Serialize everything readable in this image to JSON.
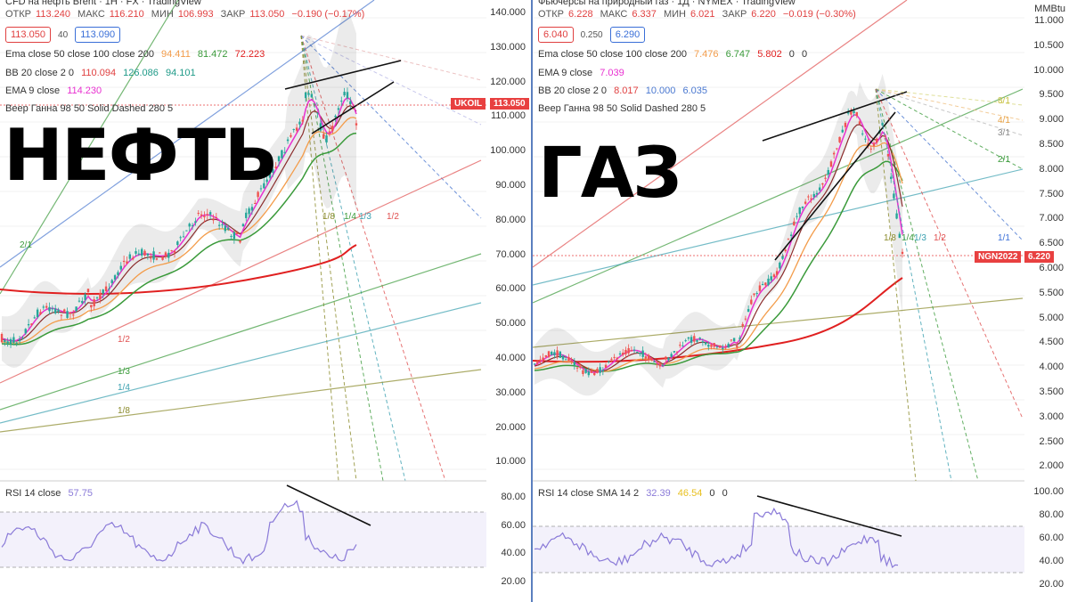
{
  "colors": {
    "up": "#26a69a",
    "down": "#ef5350",
    "ema50": "#f39c4a",
    "ema100": "#3a9a3a",
    "ema200": "#e02020",
    "ema9": "#e830d0",
    "bb_oil": "#1f9a88",
    "bb_gas": "#4a78d0",
    "rsi": "#8a7ad8",
    "trend": "#111111",
    "price_tag": "#e84040"
  },
  "left": {
    "title_partial": "CFD на нефть Brent · 1Н · FX · TradingView",
    "ohlc": {
      "open_k": "ОТКР",
      "open": "113.240",
      "high_k": "МАКС",
      "high": "116.210",
      "low_k": "МИН",
      "low": "106.993",
      "close_k": "ЗАКР",
      "close": "113.050",
      "change": "−0.190 (−0.17%)"
    },
    "sell_price": "113.050",
    "spread": "40",
    "buy_price": "113.090",
    "ema_line": {
      "label": "Ema close 50 close 100 close 200",
      "v1": "94.411",
      "v2": "81.472",
      "v3": "72.223"
    },
    "bb_line": {
      "label": "BB 20 close 2 0",
      "v1": "110.094",
      "v2": "126.086",
      "v3": "94.101"
    },
    "ema9_line": {
      "label": "EMA 9 close",
      "v1": "114.230"
    },
    "gann_line": {
      "label": "Веер Ганна 98 50 Solid Dashed 280 5"
    },
    "big_word": "НЕФТЬ",
    "axis": [
      "140.000",
      "130.000",
      "120.000",
      "110.000",
      "100.000",
      "90.000",
      "80.000",
      "70.000",
      "60.000",
      "50.000",
      "40.000",
      "30.000",
      "20.000",
      "10.000"
    ],
    "ticker_tag": "UKOIL",
    "price_tag": "113.050",
    "fan_labels": [
      "1/8",
      "1/4",
      "1/3",
      "1/2",
      "2/1",
      "1/2",
      "1/3",
      "1/4",
      "1/8"
    ],
    "rsi_label": "RSI 14 close",
    "rsi_value": "57.75",
    "rsi_axis": [
      "80.00",
      "60.00",
      "40.00",
      "20.00"
    ]
  },
  "right": {
    "title_partial": "Фьючерсы на природный газ · 1Д · NYMEX · TradingView",
    "ohlc": {
      "open_k": "ОТКР",
      "open": "6.228",
      "high_k": "МАКС",
      "high": "6.337",
      "low_k": "МИН",
      "low": "6.021",
      "close_k": "ЗАКР",
      "close": "6.220",
      "change": "−0.019 (−0.30%)"
    },
    "sell_price": "6.040",
    "spread": "0.250",
    "buy_price": "6.290",
    "ema_line": {
      "label": "Ema close 50 close 100 close 200",
      "v1": "7.476",
      "v2": "6.747",
      "v3": "5.802",
      "v4": "0",
      "v5": "0"
    },
    "ema9_line": {
      "label": "EMA 9 close",
      "v1": "7.039"
    },
    "bb_line": {
      "label": "BB 20 close 2 0",
      "v1": "8.017",
      "v2": "10.000",
      "v3": "6.035"
    },
    "gann_line": {
      "label": "Веер Ганна 98 50 Solid Dashed 280 5"
    },
    "big_word": "ГАЗ",
    "axis_unit": "MMBtu",
    "axis": [
      "11.000",
      "10.500",
      "10.000",
      "9.500",
      "9.000",
      "8.500",
      "8.000",
      "7.500",
      "7.000",
      "6.500",
      "6.000",
      "5.500",
      "5.000",
      "4.500",
      "4.000",
      "3.500",
      "3.000",
      "2.500",
      "2.000"
    ],
    "ticker_tag": "NGN2022",
    "price_tag": "6.220",
    "fan_labels": [
      "8/1",
      "4/1",
      "3/1",
      "2/1",
      "1/1",
      "1/8",
      "1/4",
      "1/3",
      "1/2"
    ],
    "rsi_label": "RSI 14 close SMA 14 2",
    "rsi_v1": "32.39",
    "rsi_v2": "46.54",
    "rsi_v3": "0",
    "rsi_v4": "0",
    "rsi_axis": [
      "100.00",
      "80.00",
      "60.00",
      "40.00",
      "20.00"
    ]
  }
}
